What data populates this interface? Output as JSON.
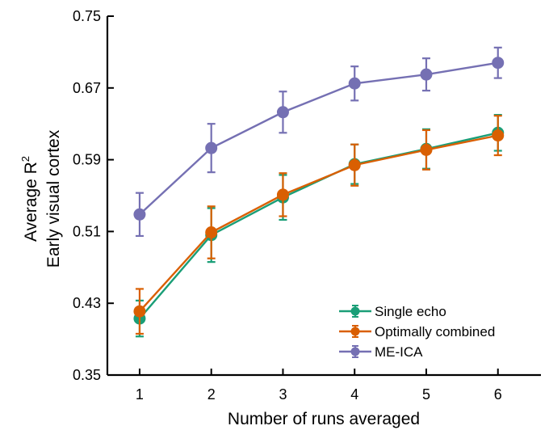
{
  "chart_data": {
    "type": "line",
    "x": [
      1,
      2,
      3,
      4,
      5,
      6
    ],
    "xlim": [
      0.55,
      6.6
    ],
    "ylim": [
      0.35,
      0.75
    ],
    "xticks": [
      "1",
      "2",
      "3",
      "4",
      "5",
      "6"
    ],
    "yticks": [
      "0.35",
      "0.43",
      "0.51",
      "0.59",
      "0.67",
      "0.75"
    ],
    "xlabel": "Number of runs averaged",
    "ylabel_line1_prefix": "Average R",
    "ylabel_line1_sup": "2",
    "ylabel_line2": "Early visual cortex",
    "legend_position": "bottom-right",
    "grid": false,
    "series": [
      {
        "name": "Single echo",
        "color": "#1a9e77",
        "values": [
          0.413,
          0.506,
          0.548,
          0.585,
          0.602,
          0.62
        ],
        "errors": [
          0.02,
          0.03,
          0.025,
          0.022,
          0.022,
          0.02
        ]
      },
      {
        "name": "Optimally combined",
        "color": "#d95f02",
        "values": [
          0.421,
          0.509,
          0.551,
          0.584,
          0.601,
          0.617
        ],
        "errors": [
          0.025,
          0.029,
          0.024,
          0.023,
          0.022,
          0.022
        ]
      },
      {
        "name": "ME-ICA",
        "color": "#7570b3",
        "values": [
          0.529,
          0.603,
          0.643,
          0.675,
          0.685,
          0.698
        ],
        "errors": [
          0.024,
          0.027,
          0.023,
          0.019,
          0.018,
          0.017
        ]
      }
    ]
  }
}
